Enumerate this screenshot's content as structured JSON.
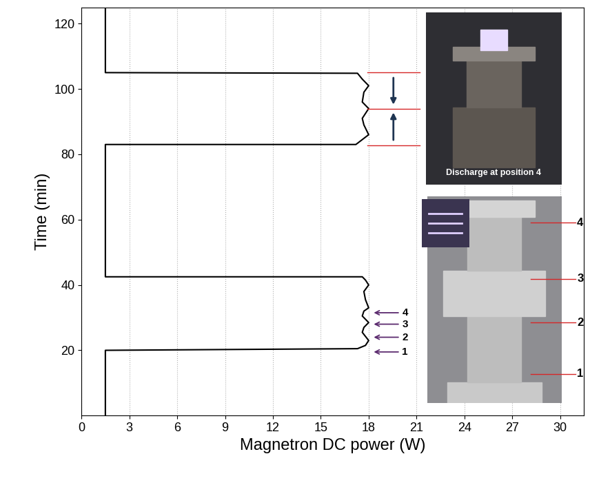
{
  "chart_data": {
    "type": "line",
    "x_label": "Magnetron DC power (W)",
    "y_label": "Time (min)",
    "x": [
      1.5,
      1.5,
      17.3,
      17.8,
      18.0,
      17.6,
      17.7,
      18.0,
      17.6,
      17.7,
      18.0,
      17.8,
      17.7,
      18.0,
      17.8,
      17.6,
      1.5,
      1.5,
      17.2,
      17.6,
      18.0,
      17.7,
      17.6,
      18.0,
      17.6,
      17.7,
      18.0,
      17.6,
      17.3,
      1.5,
      1.5
    ],
    "values": [
      0,
      20,
      20.5,
      21.5,
      23,
      25.5,
      27,
      28.5,
      30.5,
      32,
      33,
      35.5,
      38,
      40,
      41.5,
      42.5,
      42.5,
      83,
      83,
      84.5,
      86,
      89,
      91,
      94,
      96,
      99,
      101,
      103,
      104.8,
      105,
      125
    ],
    "color": "#000000",
    "xlim": [
      0,
      31.5
    ],
    "ylim": [
      0,
      125
    ],
    "xticks": [
      0,
      3,
      6,
      9,
      12,
      15,
      18,
      21,
      24,
      27,
      30
    ],
    "yticks": [
      20,
      40,
      60,
      80,
      100,
      120
    ],
    "grid": true,
    "annotations": [
      {
        "text": "1",
        "x": 18.2,
        "y": 19.5
      },
      {
        "text": "2",
        "x": 18.2,
        "y": 24
      },
      {
        "text": "3",
        "x": 18.2,
        "y": 28
      },
      {
        "text": "4",
        "x": 18.2,
        "y": 31.5
      }
    ],
    "marked_times": [
      82.8,
      94,
      105
    ],
    "photo_top_text": "Discharge at position 4",
    "photo_bottom_labels": [
      "4",
      "3",
      "2",
      "1"
    ]
  }
}
